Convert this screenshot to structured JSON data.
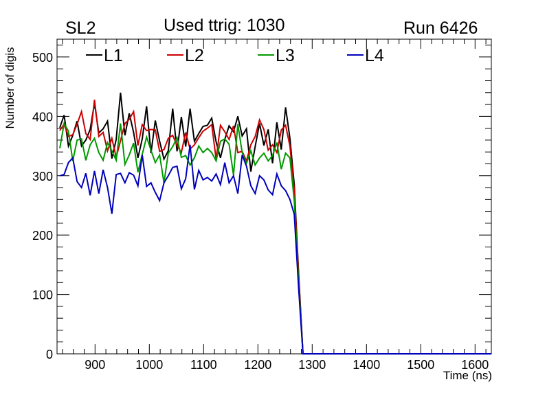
{
  "header": {
    "left": "SL2",
    "center": "Used ttrig: 1030",
    "right": "Run 6426"
  },
  "chart_data": {
    "type": "line",
    "title": "Used ttrig: 1030",
    "xlabel": "Time (ns)",
    "ylabel": "Number of digis",
    "xlim": [
      830,
      1630
    ],
    "ylim": [
      0,
      530
    ],
    "grid": false,
    "legend_position": "top",
    "x_ticks": [
      900,
      1000,
      1100,
      1200,
      1300,
      1400,
      1500,
      1600
    ],
    "y_ticks": [
      0,
      100,
      200,
      300,
      400,
      500
    ],
    "x": [
      835,
      843,
      851,
      859,
      867,
      875,
      883,
      891,
      899,
      907,
      915,
      923,
      931,
      939,
      947,
      955,
      963,
      971,
      979,
      987,
      995,
      1003,
      1011,
      1019,
      1027,
      1035,
      1043,
      1051,
      1059,
      1067,
      1075,
      1083,
      1091,
      1099,
      1107,
      1115,
      1123,
      1131,
      1139,
      1147,
      1155,
      1163,
      1171,
      1179,
      1187,
      1195,
      1203,
      1211,
      1219,
      1227,
      1235,
      1243,
      1251,
      1259,
      1267,
      1275,
      1283,
      1291,
      1630
    ],
    "series": [
      {
        "name": "L1",
        "color": "#000000",
        "values": [
          381,
          402,
          350,
          368,
          392,
          350,
          360,
          378,
          422,
          372,
          379,
          392,
          329,
          361,
          440,
          368,
          405,
          373,
          330,
          362,
          417,
          338,
          393,
          358,
          328,
          342,
          413,
          341,
          399,
          349,
          413,
          358,
          371,
          383,
          385,
          397,
          357,
          330,
          361,
          384,
          374,
          400,
          367,
          379,
          307,
          349,
          388,
          351,
          378,
          321,
          390,
          344,
          415,
          363,
          285,
          135,
          0,
          0,
          0
        ]
      },
      {
        "name": "L2",
        "color": "#cc0000",
        "values": [
          376,
          387,
          366,
          369,
          387,
          408,
          371,
          361,
          428,
          366,
          373,
          342,
          363,
          331,
          359,
          388,
          395,
          408,
          351,
          386,
          376,
          378,
          377,
          341,
          344,
          363,
          368,
          351,
          339,
          373,
          345,
          352,
          364,
          375,
          380,
          386,
          328,
          385,
          374,
          361,
          384,
          339,
          341,
          325,
          352,
          366,
          394,
          378,
          343,
          352,
          339,
          377,
          385,
          350,
          276,
          130,
          0,
          0,
          0
        ]
      },
      {
        "name": "L3",
        "color": "#009900",
        "values": [
          346,
          388,
          375,
          325,
          360,
          362,
          326,
          352,
          363,
          339,
          326,
          356,
          342,
          326,
          388,
          319,
          335,
          355,
          306,
          336,
          365,
          343,
          322,
          335,
          288,
          338,
          349,
          364,
          331,
          334,
          318,
          330,
          350,
          339,
          346,
          339,
          325,
          358,
          362,
          353,
          301,
          387,
          339,
          321,
          342,
          318,
          330,
          338,
          325,
          334,
          356,
          311,
          338,
          330,
          258,
          120,
          0,
          0,
          0
        ]
      },
      {
        "name": "L4",
        "color": "#0000bb",
        "values": [
          300,
          302,
          322,
          330,
          290,
          280,
          304,
          267,
          308,
          270,
          310,
          280,
          236,
          302,
          304,
          288,
          305,
          301,
          283,
          335,
          282,
          288,
          272,
          258,
          288,
          300,
          314,
          316,
          278,
          295,
          352,
          277,
          309,
          293,
          297,
          291,
          303,
          285,
          322,
          288,
          300,
          270,
          335,
          316,
          283,
          270,
          300,
          293,
          276,
          268,
          303,
          283,
          275,
          260,
          235,
          110,
          0,
          0,
          0
        ]
      }
    ]
  }
}
